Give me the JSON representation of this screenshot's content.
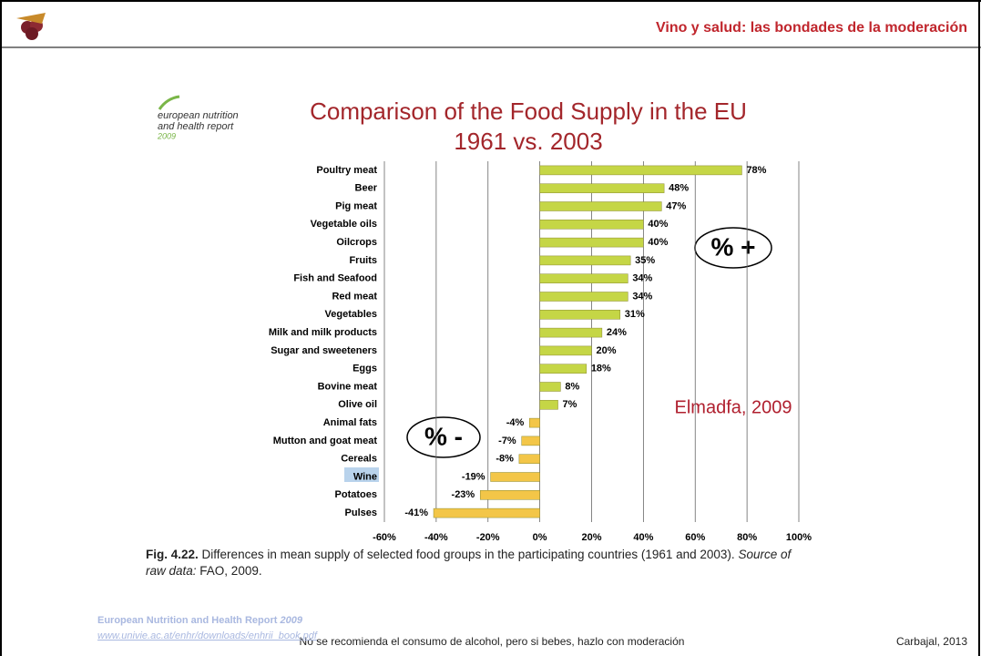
{
  "slide": {
    "header": "Vino y salud: las bondades de la moderación",
    "logo": [
      "european nutrition",
      "and health report",
      "2009"
    ],
    "caption": {
      "label": "Fig. 4.22.",
      "text": "Differences in mean supply of selected food groups in the participating countries (1961 and 2003).",
      "source_label": "Source of raw data:",
      "source": "FAO, 2009."
    },
    "reference": {
      "title": "European Nutrition and Health Report",
      "year": "2009",
      "url": "www.univie.ac.at/enhr/downloads/enhrii_book.pdf"
    },
    "footer": "No se recomienda el consumo de alcohol, pero si bebes, hazlo con moderación",
    "credit": "Carbajal, 2013"
  },
  "chart_data": {
    "type": "hbar",
    "title": "Comparison of the Food Supply in the EU",
    "subtitle": "1961 vs. 2003",
    "annotations": [
      "% +",
      "% -",
      "Elmadfa, 2009"
    ],
    "categories": [
      "Poultry meat",
      "Beer",
      "Pig meat",
      "Vegetable oils",
      "Oilcrops",
      "Fruits",
      "Fish and Seafood",
      "Red meat",
      "Vegetables",
      "Milk and milk products",
      "Sugar and sweeteners",
      "Eggs",
      "Bovine meat",
      "Olive oil",
      "Animal fats",
      "Mutton and goat meat",
      "Cereals",
      "Wine",
      "Potatoes",
      "Pulses"
    ],
    "values": [
      78,
      48,
      47,
      40,
      40,
      35,
      34,
      34,
      31,
      24,
      20,
      18,
      8,
      7,
      -4,
      -7,
      -8,
      -19,
      -23,
      -41
    ],
    "value_labels": [
      "78%",
      "48%",
      "47%",
      "40%",
      "40%",
      "35%",
      "34%",
      "34%",
      "31%",
      "24%",
      "20%",
      "18%",
      "8%",
      "7%",
      "-4%",
      "-7%",
      "-8%",
      "-19%",
      "-23%",
      "-41%"
    ],
    "color": "#c5d646",
    "negative_color": "#f3c648",
    "xlim": [
      -60,
      100
    ],
    "xticks": [
      {
        "value": -60,
        "label": "-60%"
      },
      {
        "value": -40,
        "label": "-40%"
      },
      {
        "value": -20,
        "label": "-20%"
      },
      {
        "value": 0,
        "label": "0%"
      },
      {
        "value": 20,
        "label": "20%"
      },
      {
        "value": 40,
        "label": "40%"
      },
      {
        "value": 60,
        "label": "60%"
      },
      {
        "value": 80,
        "label": "80%"
      },
      {
        "value": 100,
        "label": "100%"
      }
    ],
    "grid": true
  }
}
